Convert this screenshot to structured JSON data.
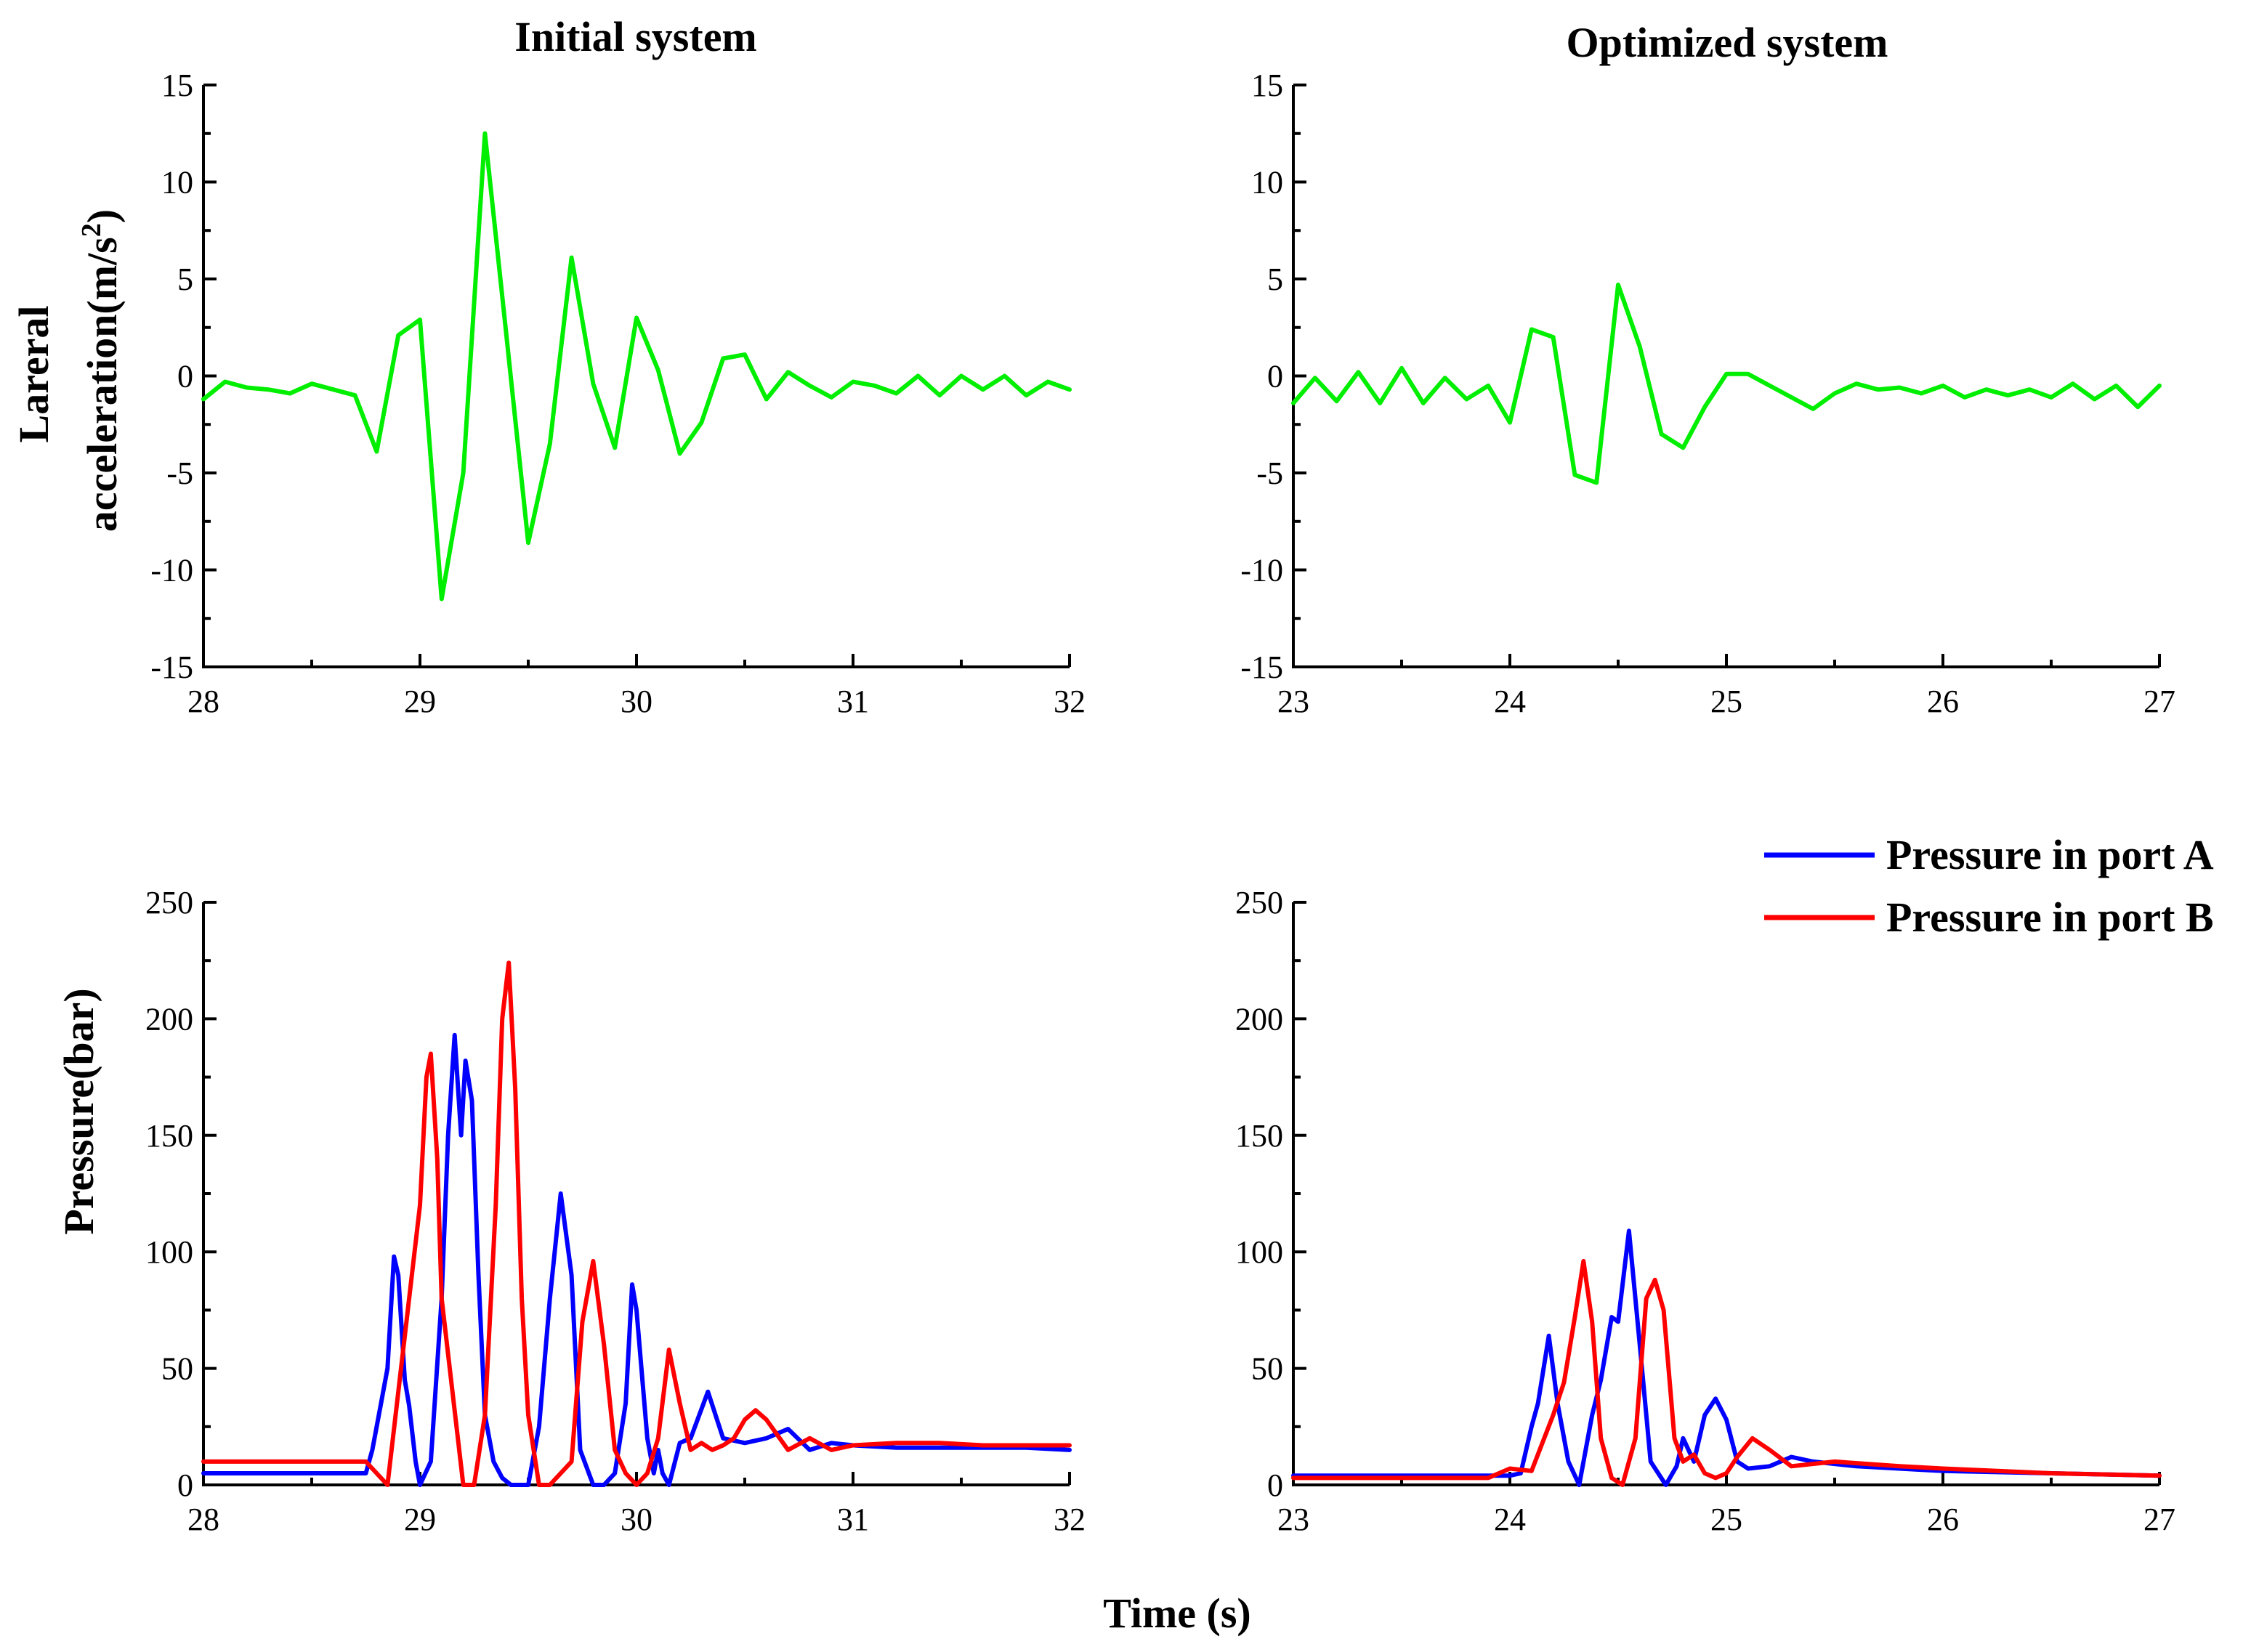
{
  "figure": {
    "xlabel": "Time (s)",
    "ylabel_top_line1": "Lareral",
    "ylabel_top_line2": "acceleration(m/s",
    "ylabel_top_sup": "2",
    "ylabel_top_close": ")",
    "ylabel_bottom": "Pressure(bar)"
  },
  "legend": {
    "items": [
      {
        "label": "Pressure in port A",
        "color": "#0000ff"
      },
      {
        "label": "Pressure in port B",
        "color": "#ff0000"
      }
    ]
  },
  "chart_data": [
    {
      "type": "line",
      "title": "Initial system",
      "xlabel": "",
      "ylabel": "Lareral acceleration(m/s2)",
      "xlim": [
        28,
        32
      ],
      "ylim": [
        -15,
        15
      ],
      "xticks": [
        "28",
        "29",
        "30",
        "31",
        "32"
      ],
      "yticks": [
        "-15",
        "-10",
        "-5",
        "0",
        "5",
        "10",
        "15"
      ],
      "series": [
        {
          "name": "Lateral acceleration",
          "color": "#00ee00",
          "x": [
            28.0,
            28.1,
            28.2,
            28.3,
            28.4,
            28.5,
            28.6,
            28.7,
            28.8,
            28.9,
            29.0,
            29.1,
            29.2,
            29.3,
            29.4,
            29.5,
            29.6,
            29.7,
            29.8,
            29.9,
            30.0,
            30.1,
            30.2,
            30.3,
            30.4,
            30.5,
            30.6,
            30.7,
            30.8,
            30.9,
            31.0,
            31.1,
            31.2,
            31.3,
            31.4,
            31.5,
            31.6,
            31.7,
            31.8,
            31.9,
            32.0
          ],
          "y": [
            -1.2,
            -0.3,
            -0.6,
            -0.7,
            -0.9,
            -0.4,
            -0.7,
            -1.0,
            -3.9,
            2.1,
            2.9,
            -11.5,
            -5.0,
            12.5,
            2.0,
            -8.6,
            -3.5,
            6.1,
            -0.4,
            -3.7,
            3.0,
            0.3,
            -4.0,
            -2.4,
            0.9,
            1.1,
            -1.2,
            0.2,
            -0.5,
            -1.1,
            -0.3,
            -0.5,
            -0.9,
            0.0,
            -1.0,
            0.0,
            -0.7,
            0.0,
            -1.0,
            -0.3,
            -0.7
          ]
        }
      ]
    },
    {
      "type": "line",
      "title": "Optimized system",
      "xlabel": "",
      "ylabel": "",
      "xlim": [
        23,
        27
      ],
      "ylim": [
        -15,
        15
      ],
      "xticks": [
        "23",
        "24",
        "25",
        "26",
        "27"
      ],
      "yticks": [
        "-15",
        "-10",
        "-5",
        "0",
        "5",
        "10",
        "15"
      ],
      "series": [
        {
          "name": "Lateral acceleration",
          "color": "#00ee00",
          "x": [
            23.0,
            23.1,
            23.2,
            23.3,
            23.4,
            23.5,
            23.6,
            23.7,
            23.8,
            23.9,
            24.0,
            24.1,
            24.2,
            24.3,
            24.4,
            24.5,
            24.6,
            24.7,
            24.8,
            24.9,
            25.0,
            25.1,
            25.2,
            25.3,
            25.4,
            25.5,
            25.6,
            25.7,
            25.8,
            25.9,
            26.0,
            26.1,
            26.2,
            26.3,
            26.4,
            26.5,
            26.6,
            26.7,
            26.8,
            26.9,
            27.0
          ],
          "y": [
            -1.4,
            -0.1,
            -1.3,
            0.2,
            -1.4,
            0.4,
            -1.4,
            -0.1,
            -1.2,
            -0.5,
            -2.4,
            2.4,
            2.0,
            -5.1,
            -5.5,
            4.7,
            1.5,
            -3.0,
            -3.7,
            -1.6,
            0.1,
            0.1,
            -0.5,
            -1.1,
            -1.7,
            -0.9,
            -0.4,
            -0.7,
            -0.6,
            -0.9,
            -0.5,
            -1.1,
            -0.7,
            -1.0,
            -0.7,
            -1.1,
            -0.4,
            -1.2,
            -0.5,
            -1.6,
            -0.5
          ]
        }
      ]
    },
    {
      "type": "line",
      "title": "",
      "xlabel": "Time (s)",
      "ylabel": "Pressure(bar)",
      "xlim": [
        28,
        32
      ],
      "ylim": [
        0,
        250
      ],
      "xticks": [
        "28",
        "29",
        "30",
        "31",
        "32"
      ],
      "yticks": [
        "0",
        "50",
        "100",
        "150",
        "200",
        "250"
      ],
      "series": [
        {
          "name": "Pressure in port A",
          "color": "#0000ff",
          "x": [
            28.0,
            28.5,
            28.75,
            28.78,
            28.82,
            28.85,
            28.88,
            28.9,
            28.93,
            28.95,
            28.98,
            29.0,
            29.05,
            29.1,
            29.13,
            29.16,
            29.19,
            29.21,
            29.24,
            29.27,
            29.3,
            29.34,
            29.38,
            29.42,
            29.5,
            29.55,
            29.6,
            29.65,
            29.7,
            29.74,
            29.8,
            29.85,
            29.9,
            29.95,
            29.98,
            30.0,
            30.05,
            30.08,
            30.1,
            30.12,
            30.15,
            30.2,
            30.25,
            30.33,
            30.4,
            30.5,
            30.6,
            30.7,
            30.8,
            30.9,
            31.0,
            31.2,
            31.5,
            31.8,
            32.0
          ],
          "y": [
            5,
            5,
            5,
            15,
            35,
            50,
            98,
            90,
            45,
            34,
            10,
            0,
            10,
            80,
            150,
            193,
            150,
            182,
            165,
            90,
            30,
            10,
            3,
            0,
            0,
            25,
            80,
            125,
            90,
            15,
            0,
            0,
            5,
            35,
            86,
            75,
            20,
            5,
            15,
            5,
            0,
            18,
            20,
            40,
            20,
            18,
            20,
            24,
            15,
            18,
            17,
            16,
            16,
            16,
            15
          ]
        },
        {
          "name": "Pressure in port B",
          "color": "#ff0000",
          "x": [
            28.0,
            28.5,
            28.75,
            28.8,
            28.85,
            28.9,
            28.95,
            29.0,
            29.03,
            29.05,
            29.08,
            29.1,
            29.15,
            29.2,
            29.25,
            29.3,
            29.35,
            29.38,
            29.41,
            29.44,
            29.47,
            29.5,
            29.55,
            29.6,
            29.7,
            29.75,
            29.8,
            29.85,
            29.9,
            29.95,
            30.0,
            30.05,
            30.1,
            30.15,
            30.2,
            30.25,
            30.3,
            30.35,
            30.4,
            30.45,
            30.5,
            30.55,
            30.6,
            30.7,
            30.8,
            30.9,
            31.0,
            31.2,
            31.4,
            31.6,
            31.8,
            32.0
          ],
          "y": [
            10,
            10,
            10,
            5,
            0,
            40,
            80,
            120,
            175,
            185,
            140,
            80,
            40,
            0,
            0,
            30,
            120,
            200,
            224,
            170,
            80,
            30,
            0,
            0,
            10,
            70,
            96,
            60,
            15,
            5,
            0,
            5,
            20,
            58,
            35,
            15,
            18,
            15,
            17,
            20,
            28,
            32,
            28,
            15,
            20,
            15,
            17,
            18,
            18,
            17,
            17,
            17
          ]
        }
      ]
    },
    {
      "type": "line",
      "title": "",
      "xlabel": "Time (s)",
      "ylabel": "",
      "xlim": [
        23,
        27
      ],
      "ylim": [
        0,
        250
      ],
      "xticks": [
        "23",
        "24",
        "25",
        "26",
        "27"
      ],
      "yticks": [
        "0",
        "50",
        "100",
        "150",
        "200",
        "250"
      ],
      "series": [
        {
          "name": "Pressure in port A",
          "color": "#0000ff",
          "x": [
            23.0,
            23.5,
            24.0,
            24.05,
            24.1,
            24.13,
            24.18,
            24.22,
            24.27,
            24.32,
            24.38,
            24.42,
            24.47,
            24.5,
            24.55,
            24.6,
            24.65,
            24.72,
            24.77,
            24.8,
            24.85,
            24.9,
            24.95,
            25.0,
            25.05,
            25.1,
            25.2,
            25.3,
            25.4,
            25.6,
            26.0,
            26.5,
            27.0
          ],
          "y": [
            4,
            4,
            4,
            5,
            25,
            35,
            64,
            35,
            10,
            0,
            30,
            45,
            72,
            70,
            109,
            60,
            10,
            0,
            8,
            20,
            10,
            30,
            37,
            28,
            10,
            7,
            8,
            12,
            10,
            8,
            6,
            5,
            4
          ]
        },
        {
          "name": "Pressure in port B",
          "color": "#ff0000",
          "x": [
            23.0,
            23.5,
            23.9,
            24.0,
            24.1,
            24.2,
            24.25,
            24.3,
            24.34,
            24.38,
            24.42,
            24.47,
            24.52,
            24.58,
            24.63,
            24.67,
            24.71,
            24.76,
            24.8,
            24.85,
            24.9,
            24.95,
            25.0,
            25.05,
            25.12,
            25.2,
            25.3,
            25.5,
            25.8,
            26.0,
            26.5,
            27.0
          ],
          "y": [
            3,
            3,
            3,
            7,
            6,
            30,
            44,
            72,
            96,
            70,
            20,
            3,
            0,
            20,
            80,
            88,
            75,
            20,
            10,
            13,
            5,
            3,
            5,
            12,
            20,
            15,
            8,
            10,
            8,
            7,
            5,
            4
          ]
        }
      ]
    }
  ]
}
